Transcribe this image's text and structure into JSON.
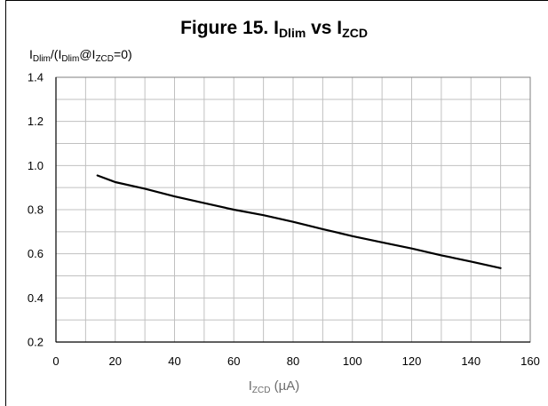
{
  "chart_data": {
    "type": "line",
    "title": {
      "prefix": "Figure 15. I",
      "sub1": "Dlim",
      "mid": " vs I",
      "sub2": "ZCD"
    },
    "ylabel": {
      "p1": "I",
      "s1": "Dlim",
      "p2": "/(I",
      "s2": "Dlim",
      "p3": "@I",
      "s3": "ZCD",
      "p4": "=0)"
    },
    "xlabel": {
      "p1": "I",
      "s1": "ZCD",
      "p2": " (µA)"
    },
    "xlim": [
      0,
      160
    ],
    "ylim": [
      0.2,
      1.4
    ],
    "xticks": [
      0,
      20,
      40,
      60,
      80,
      100,
      120,
      140,
      160
    ],
    "yticks": [
      "0.2",
      "0.4",
      "0.6",
      "0.8",
      "1.0",
      "1.2",
      "1.4"
    ],
    "grid": true,
    "series": [
      {
        "x": [
          14,
          20,
          30,
          40,
          50,
          60,
          70,
          80,
          90,
          100,
          110,
          120,
          130,
          140,
          150
        ],
        "y": [
          0.955,
          0.925,
          0.895,
          0.86,
          0.83,
          0.8,
          0.775,
          0.745,
          0.712,
          0.68,
          0.652,
          0.624,
          0.593,
          0.565,
          0.535
        ]
      }
    ],
    "line_color": "#000000",
    "grid_color": "#c0c0c0"
  }
}
